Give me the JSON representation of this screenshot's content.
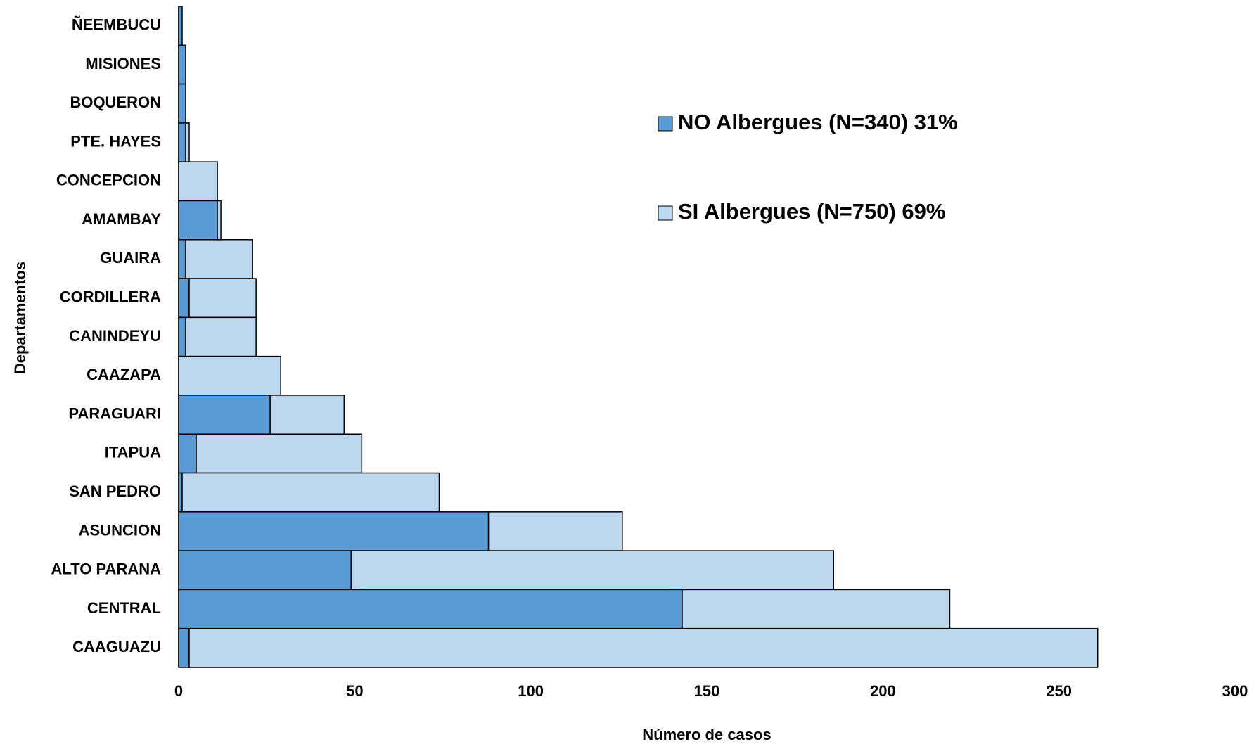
{
  "chart_data": {
    "type": "stacked-horizontal-bar",
    "xlabel": "Número de casos",
    "ylabel": "Departamentos",
    "categories": [
      "ÑEEMBUCU",
      "MISIONES",
      "BOQUERON",
      "PTE. HAYES",
      "CONCEPCION",
      "AMAMBAY",
      "GUAIRA",
      "CORDILLERA",
      "CANINDEYU",
      "CAAZAPA",
      "PARAGUARI",
      "ITAPUA",
      "SAN PEDRO",
      "ASUNCION",
      "ALTO PARANA",
      "CENTRAL",
      "CAAGUAZU"
    ],
    "series": [
      {
        "name": "NO Albergues (N=340) 31%",
        "color": "#5b9bd5",
        "values": [
          1,
          2,
          2,
          2,
          0,
          11,
          2,
          3,
          2,
          0,
          26,
          5,
          1,
          88,
          49,
          143,
          3
        ]
      },
      {
        "name": "SI Albergues (N=750) 69%",
        "color": "#bdd7ee",
        "values": [
          0,
          0,
          0,
          1,
          11,
          1,
          19,
          19,
          20,
          29,
          21,
          47,
          73,
          38,
          137,
          76,
          258
        ]
      }
    ],
    "xlim": [
      0,
      300
    ],
    "xticks": [
      0,
      50,
      100,
      150,
      200,
      250,
      300
    ]
  }
}
